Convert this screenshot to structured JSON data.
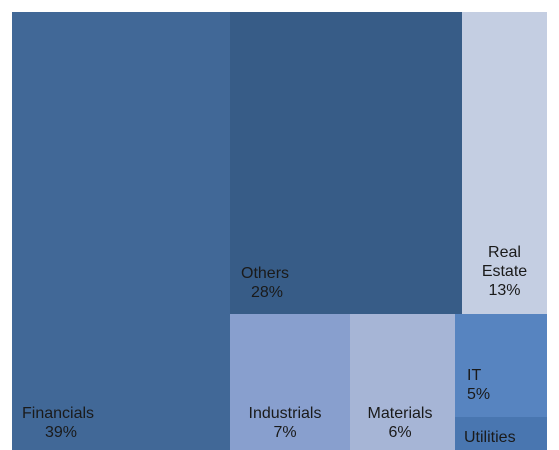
{
  "chart_data": {
    "type": "treemap",
    "title": "",
    "items": [
      {
        "label": "Financials",
        "value_label": "39%",
        "value": 39,
        "color": "#416897"
      },
      {
        "label": "Others",
        "value_label": "28%",
        "value": 28,
        "color": "#375c87"
      },
      {
        "label": "Real Estate",
        "value_label": "13%",
        "value": 13,
        "color": "#c4cee2"
      },
      {
        "label": "Industrials",
        "value_label": "7%",
        "value": 7,
        "color": "#889fce"
      },
      {
        "label": "Materials",
        "value_label": "6%",
        "value": 6,
        "color": "#a6b5d6"
      },
      {
        "label": "IT",
        "value_label": "5%",
        "value": 5,
        "color": "#5784c0"
      },
      {
        "label": "Utilities",
        "value_label": "",
        "value": 2,
        "color": "#4976b0"
      }
    ]
  }
}
